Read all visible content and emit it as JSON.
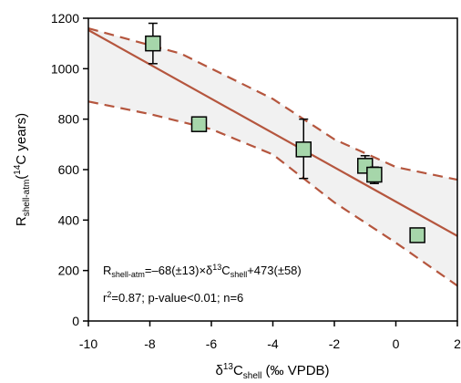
{
  "chart_data": {
    "type": "scatter",
    "xlim": [
      -10,
      2
    ],
    "ylim": [
      0,
      1200
    ],
    "x_ticks": [
      -10,
      -8,
      -6,
      -4,
      -2,
      0,
      2
    ],
    "y_ticks": [
      0,
      200,
      400,
      600,
      800,
      1000,
      1200
    ],
    "x_tick_labels": [
      "-10",
      "-8",
      "-6",
      "-4",
      "-2",
      "0",
      "2"
    ],
    "y_tick_labels": [
      "0",
      "200",
      "400",
      "600",
      "800",
      "1000",
      "1200"
    ],
    "xlabel": {
      "base1": "δ",
      "sup": "13",
      "base2": "C",
      "sub": "shell",
      "tail": " (‰ VPDB)"
    },
    "ylabel": {
      "base1": "R",
      "sub": "shell-atm",
      "base2": "(",
      "sup": "14",
      "tail": "C years)"
    },
    "grid": false,
    "points": [
      {
        "x": -7.9,
        "y": 1100,
        "yerr_low": 1020,
        "yerr_high": 1180
      },
      {
        "x": -6.4,
        "y": 780,
        "yerr_low": 760,
        "yerr_high": 790
      },
      {
        "x": -3.0,
        "y": 680,
        "yerr_low": 565,
        "yerr_high": 800
      },
      {
        "x": -1.0,
        "y": 615,
        "yerr_low": 590,
        "yerr_high": 655
      },
      {
        "x": -0.7,
        "y": 580,
        "yerr_low": 545,
        "yerr_high": 610
      },
      {
        "x": 0.7,
        "y": 340,
        "yerr_low": 318,
        "yerr_high": 365
      }
    ],
    "regression": {
      "slope": -68,
      "intercept": 473
    },
    "confidence_upper": [
      [
        -10,
        1160
      ],
      [
        -7,
        1060
      ],
      [
        -4,
        880
      ],
      [
        -2,
        720
      ],
      [
        0,
        610
      ],
      [
        2,
        560
      ]
    ],
    "confidence_lower": [
      [
        -10,
        870
      ],
      [
        -8,
        820
      ],
      [
        -6,
        760
      ],
      [
        -4,
        660
      ],
      [
        -2,
        470
      ],
      [
        0,
        310
      ],
      [
        2,
        140
      ]
    ],
    "annotations": {
      "eq": {
        "p1": "R",
        "sub1": "shell-atm",
        "p2": "=–68(±13)×δ",
        "sup": "13",
        "p3": "C",
        "sub2": "shell",
        "p4": "+473(±58)"
      },
      "stats": {
        "p1": "r",
        "sup": "2",
        "p2": "=0.87; p-value<0.01; n=6"
      }
    },
    "colors": {
      "marker_fill": "#a6d6aa",
      "marker_edge": "#000000",
      "line": "#b5563e",
      "band": "#f1f1f1"
    }
  }
}
